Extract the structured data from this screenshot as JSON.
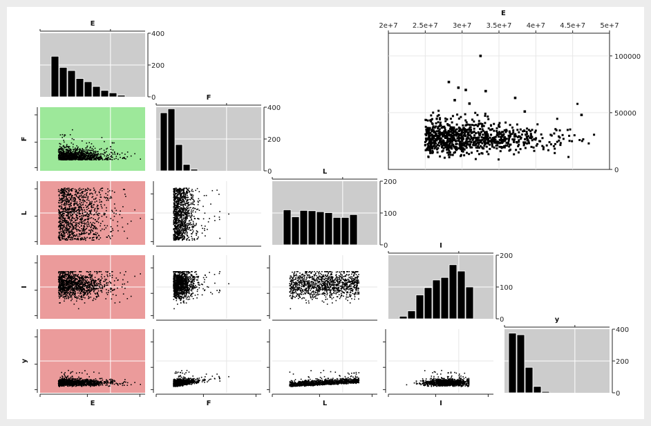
{
  "chart_data": {
    "type": "scatter-matrix",
    "variables": [
      "E",
      "F",
      "L",
      "I",
      "y"
    ],
    "colors": {
      "histogram_bg": "#cccccc",
      "highlight_green": "#9de89a",
      "highlight_red": "#eb9b9b",
      "bar_fill": "#000000",
      "point": "#000000",
      "grid": "#e6e6e6"
    },
    "histograms": [
      {
        "variable": "E",
        "ylim": [
          0,
          400
        ],
        "yticks": [
          "0",
          "200",
          "400"
        ],
        "counts": [
          255,
          185,
          165,
          115,
          95,
          65,
          40,
          25,
          10
        ]
      },
      {
        "variable": "F",
        "ylim": [
          0,
          400
        ],
        "yticks": [
          "0",
          "200",
          "400"
        ],
        "counts": [
          365,
          390,
          165,
          40,
          10
        ]
      },
      {
        "variable": "L",
        "ylim": [
          0,
          200
        ],
        "yticks": [
          "0",
          "100",
          "200"
        ],
        "counts": [
          110,
          88,
          108,
          107,
          104,
          101,
          86,
          86,
          95
        ]
      },
      {
        "variable": "I",
        "ylim": [
          0,
          200
        ],
        "yticks": [
          "0",
          "100",
          "200"
        ],
        "counts": [
          8,
          25,
          75,
          98,
          122,
          130,
          170,
          150,
          100
        ]
      },
      {
        "variable": "y",
        "ylim": [
          0,
          400
        ],
        "yticks": [
          "0",
          "200",
          "400"
        ],
        "counts": [
          375,
          365,
          160,
          40,
          8
        ]
      }
    ],
    "matrix_highlights": {
      "F|E": "green",
      "L|E": "red",
      "I|E": "red",
      "y|E": "red"
    },
    "detail_plot": {
      "type": "scatter",
      "x_variable": "E",
      "xlabel": "E",
      "xlim": [
        20000000,
        50000000
      ],
      "xticks": [
        "2e+7",
        "2.5e+7",
        "3e+7",
        "3.5e+7",
        "4e+7",
        "4.5e+7",
        "5e+7"
      ],
      "ylim": [
        0,
        120000
      ],
      "yticks": [
        "0",
        "50000",
        "100000"
      ],
      "outliers": [
        [
          32500000,
          100000
        ],
        [
          28200000,
          77000
        ],
        [
          29500000,
          72000
        ],
        [
          30500000,
          70000
        ],
        [
          33200000,
          69000
        ],
        [
          37200000,
          63000
        ],
        [
          29000000,
          61000
        ],
        [
          31000000,
          58000
        ],
        [
          46200000,
          48000
        ],
        [
          38500000,
          51000
        ]
      ],
      "bulk": {
        "x_min": 25000000,
        "x_max": 48000000,
        "y_center": 27000,
        "y_spread": 8000
      }
    }
  }
}
